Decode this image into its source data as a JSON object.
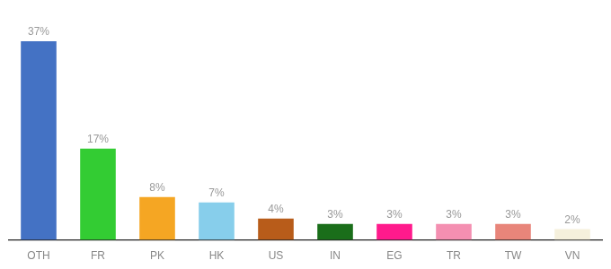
{
  "chart_data": {
    "type": "bar",
    "categories": [
      "OTH",
      "FR",
      "PK",
      "HK",
      "US",
      "IN",
      "EG",
      "TR",
      "TW",
      "VN"
    ],
    "values": [
      37,
      17,
      8,
      7,
      4,
      3,
      3,
      3,
      3,
      2
    ],
    "value_labels": [
      "37%",
      "17%",
      "8%",
      "7%",
      "4%",
      "3%",
      "3%",
      "3%",
      "3%",
      "2%"
    ],
    "colors": [
      "#4472c4",
      "#33cc33",
      "#f5a623",
      "#87ceeb",
      "#b85c1a",
      "#1a6e1a",
      "#ff1a8c",
      "#f48fb1",
      "#e8857a",
      "#f5f0dc"
    ],
    "ylim": [
      0,
      43
    ],
    "grid": false,
    "data_labels": true,
    "tick_labels": "x"
  }
}
